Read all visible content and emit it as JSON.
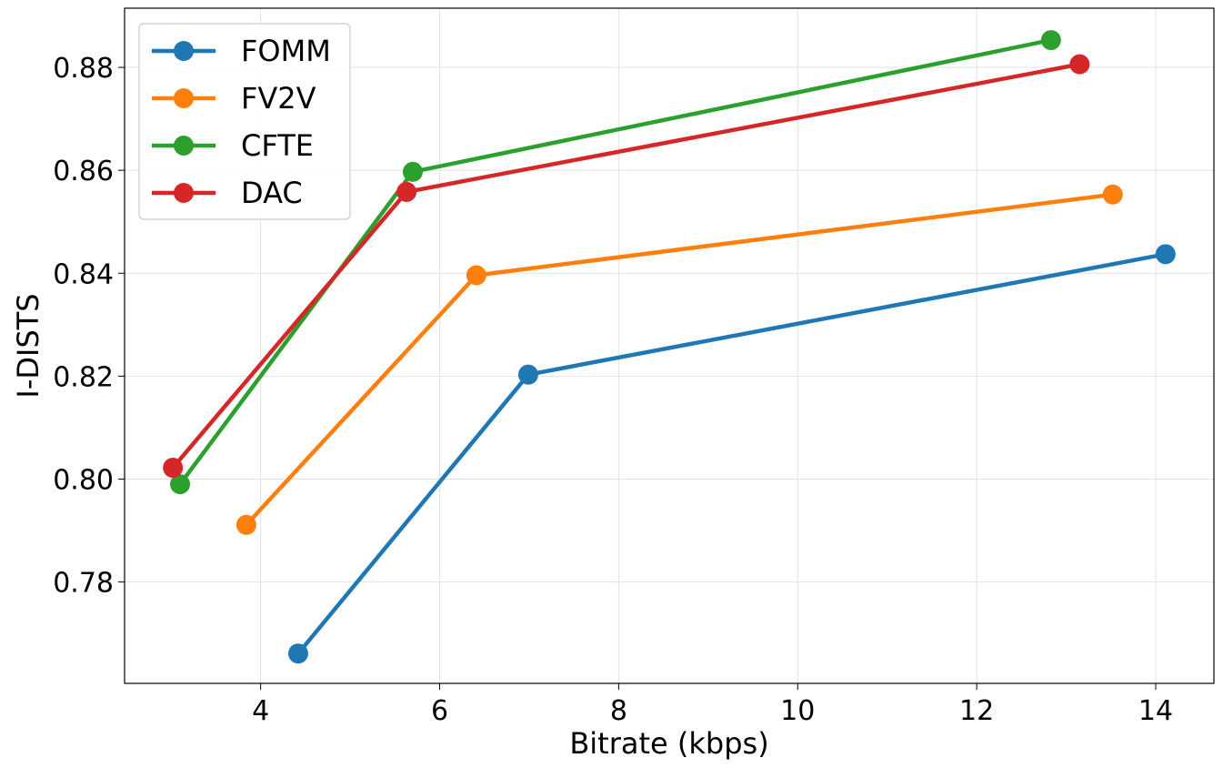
{
  "chart_data": {
    "type": "line",
    "title": "",
    "xlabel": "Bitrate (kbps)",
    "ylabel": "I-DISTS",
    "xlim": [
      2.48,
      14.65
    ],
    "ylim": [
      0.7603,
      0.8915
    ],
    "xticks": [
      4,
      6,
      8,
      10,
      12,
      14
    ],
    "xtick_labels": [
      "4",
      "6",
      "8",
      "10",
      "12",
      "14"
    ],
    "yticks": [
      0.78,
      0.8,
      0.82,
      0.84,
      0.86,
      0.88
    ],
    "ytick_labels": [
      "0.78",
      "0.80",
      "0.82",
      "0.84",
      "0.86",
      "0.88"
    ],
    "grid": true,
    "legend_position": "top-left",
    "series": [
      {
        "name": "FOMM",
        "color": "#1f77b4",
        "x": [
          4.42,
          6.99,
          14.11
        ],
        "y": [
          0.7661,
          0.8203,
          0.8437
        ]
      },
      {
        "name": "FV2V",
        "color": "#ff7f0e",
        "x": [
          3.84,
          6.41,
          13.52
        ],
        "y": [
          0.7911,
          0.8396,
          0.8553
        ]
      },
      {
        "name": "CFTE",
        "color": "#2ca02c",
        "x": [
          3.1,
          5.7,
          12.83
        ],
        "y": [
          0.799,
          0.8597,
          0.8853
        ]
      },
      {
        "name": "DAC",
        "color": "#d62728",
        "x": [
          3.02,
          5.63,
          13.15
        ],
        "y": [
          0.8022,
          0.8558,
          0.8806
        ]
      }
    ]
  }
}
